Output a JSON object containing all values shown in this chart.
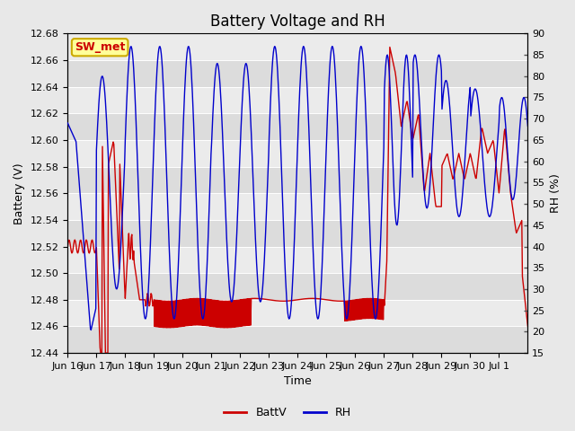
{
  "title": "Battery Voltage and RH",
  "xlabel": "Time",
  "ylabel_left": "Battery (V)",
  "ylabel_right": "RH (%)",
  "station_label": "SW_met",
  "ylim_left": [
    12.44,
    12.68
  ],
  "ylim_right": [
    15,
    90
  ],
  "yticks_left": [
    12.44,
    12.46,
    12.48,
    12.5,
    12.52,
    12.54,
    12.56,
    12.58,
    12.6,
    12.62,
    12.64,
    12.66,
    12.68
  ],
  "yticks_right": [
    15,
    20,
    25,
    30,
    35,
    40,
    45,
    50,
    55,
    60,
    65,
    70,
    75,
    80,
    85,
    90
  ],
  "xtick_labels": [
    "Jun 16",
    "Jun 17",
    "Jun 18",
    "Jun 19",
    "Jun 20",
    "Jun 21",
    "Jun 22",
    "Jun 23",
    "Jun 24",
    "Jun 25",
    "Jun 26",
    "Jun 27",
    "Jun 28",
    "Jun 29",
    "Jun 30",
    "Jul 1"
  ],
  "bg_color": "#e8e8e8",
  "plot_bg_color": "#f0f0f0",
  "band_dark": "#dcdcdc",
  "band_light": "#ebebeb",
  "line_color_battv": "#cc0000",
  "line_color_rh": "#0000cc",
  "legend_labels": [
    "BattV",
    "RH"
  ],
  "title_fontsize": 12,
  "label_fontsize": 9,
  "tick_fontsize": 8,
  "station_box_facecolor": "#ffff99",
  "station_box_edge": "#ccaa00",
  "station_text_color": "#cc0000"
}
